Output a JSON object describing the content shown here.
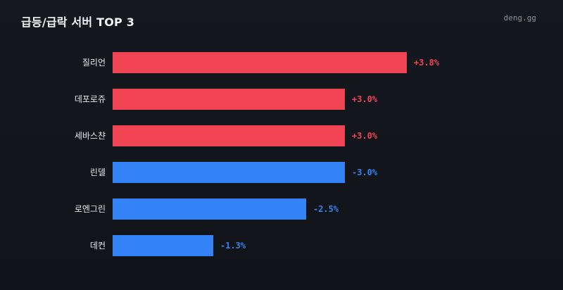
{
  "header": {
    "brand": "deng.gg"
  },
  "colors": {
    "up": "#f04455",
    "down": "#3382f6",
    "background": "#13171c"
  },
  "chart_data": {
    "type": "bar",
    "orientation": "horizontal",
    "title": "급등/급락 서버 TOP 3",
    "categories": [
      "질리언",
      "데포로쥬",
      "세바스챤",
      "린델",
      "로엔그린",
      "데컨"
    ],
    "values": [
      3.8,
      3.0,
      3.0,
      -3.0,
      -2.5,
      -1.3
    ],
    "value_labels": [
      "+3.8%",
      "+3.0%",
      "+3.0%",
      "-3.0%",
      "-2.5%",
      "-1.3%"
    ],
    "bar_length_measure": "absolute value",
    "unit": "%",
    "grid": false,
    "legend": "none"
  }
}
